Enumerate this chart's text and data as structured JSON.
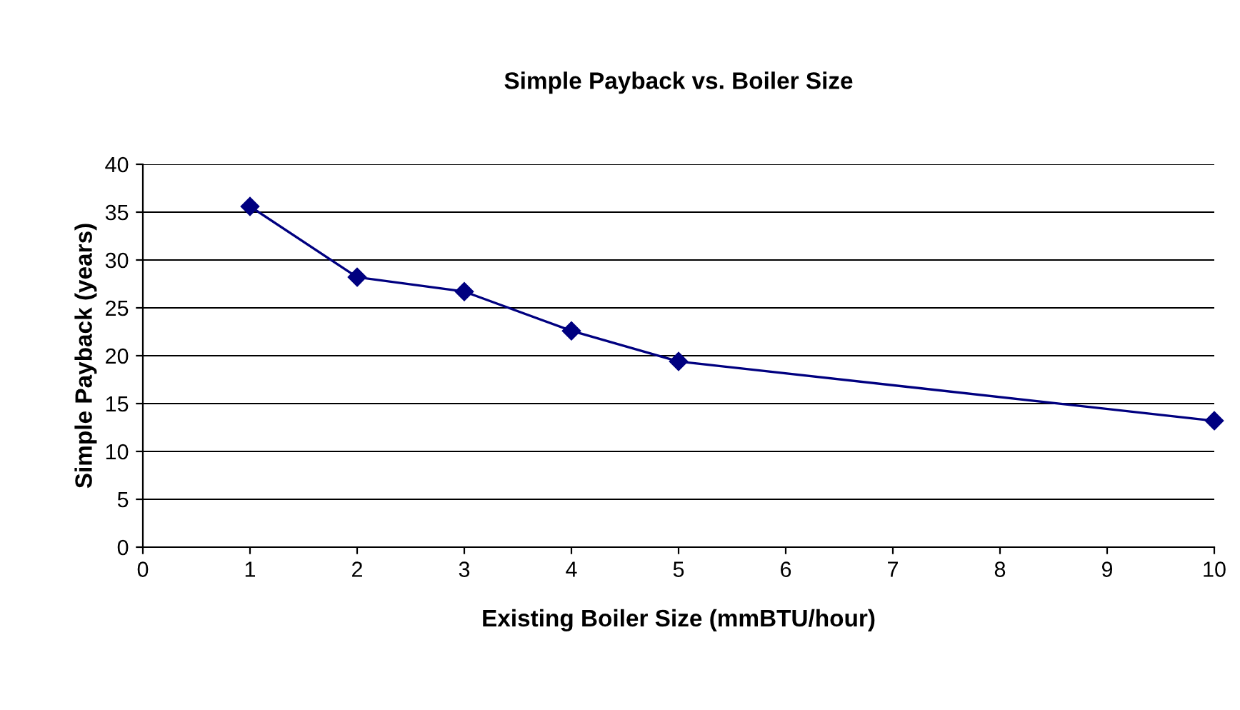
{
  "chart_data": {
    "type": "line",
    "title": "Simple Payback vs. Boiler Size",
    "xlabel": "Existing Boiler Size (mmBTU/hour)",
    "ylabel": "Simple Payback (years)",
    "x": [
      1,
      2,
      3,
      4,
      5,
      10
    ],
    "series": [
      {
        "color": "#000080",
        "values": [
          35.6,
          28.2,
          26.7,
          22.6,
          19.4,
          13.2
        ]
      }
    ],
    "xlim": [
      0,
      10
    ],
    "xticks": [
      0,
      1,
      2,
      3,
      4,
      5,
      6,
      7,
      8,
      9,
      10
    ],
    "ylim": [
      0,
      40
    ],
    "yticks": [
      0,
      5,
      10,
      15,
      20,
      25,
      30,
      35,
      40
    ],
    "grid": "y",
    "marker": "diamond",
    "line_style": "solid",
    "legend": false
  }
}
